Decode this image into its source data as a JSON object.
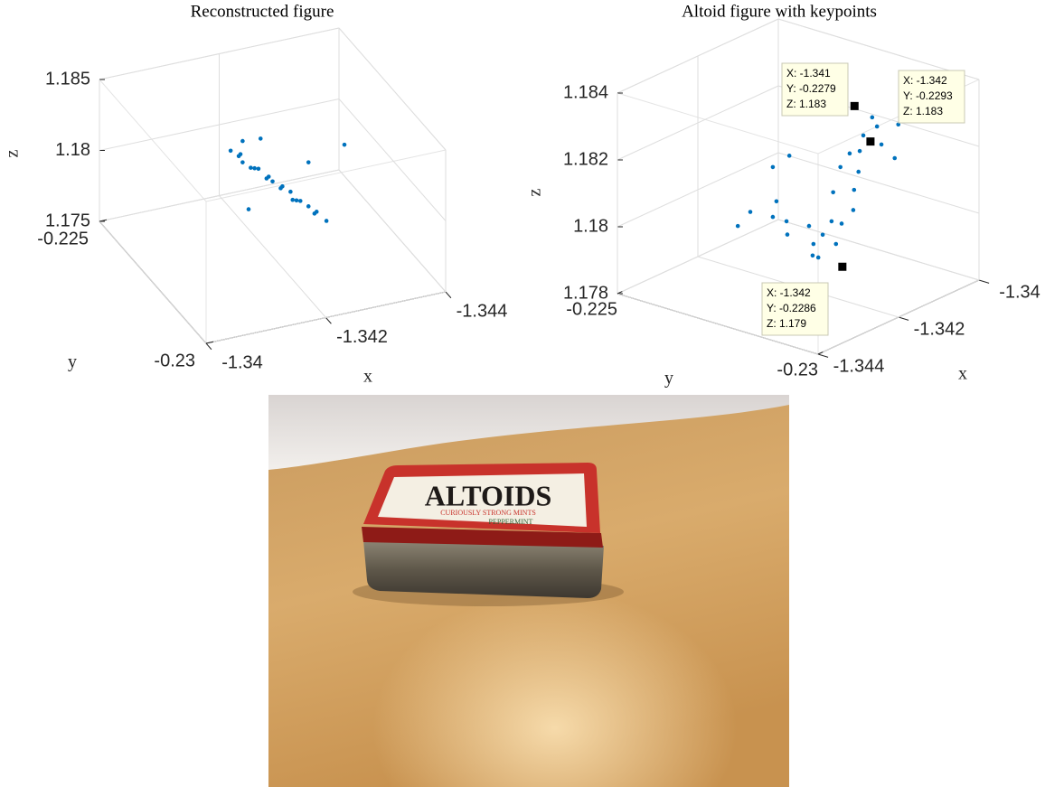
{
  "chart_data": [
    {
      "type": "scatter3d",
      "title": "Reconstructed figure",
      "xlabel": "x",
      "ylabel": "y",
      "zlabel": "z",
      "color": "#0072bd",
      "grid": true,
      "xlim": [
        -1.344,
        -1.34
      ],
      "ylim": [
        -0.23,
        -0.225
      ],
      "zlim": [
        1.175,
        1.185
      ],
      "xticks": [
        -1.344,
        -1.342,
        -1.34
      ],
      "yticks": [
        -0.23,
        -0.225
      ],
      "zticks": [
        1.175,
        1.18,
        1.185
      ],
      "x": [
        -1.3413,
        -1.3414,
        -1.3415,
        -1.3415,
        -1.3416,
        -1.3417,
        -1.3418,
        -1.3419,
        -1.3419,
        -1.342,
        -1.3421,
        -1.3422,
        -1.3423,
        -1.3423,
        -1.3424,
        -1.3425,
        -1.3426,
        -1.3427,
        -1.3427,
        -1.3429,
        -1.3415,
        -1.3418,
        -1.3432,
        -1.3416,
        -1.3426
      ],
      "y": [
        -0.2275,
        -0.2276,
        -0.2274,
        -0.2275,
        -0.2276,
        -0.2275,
        -0.2274,
        -0.2276,
        -0.2275,
        -0.2275,
        -0.2276,
        -0.2274,
        -0.2275,
        -0.2276,
        -0.2275,
        -0.2274,
        -0.2275,
        -0.2276,
        -0.2275,
        -0.2275,
        -0.2275,
        -0.2275,
        -0.2275,
        -0.2275,
        -0.2275
      ],
      "z": [
        1.1831,
        1.1828,
        1.1825,
        1.1821,
        1.1818,
        1.1815,
        1.1812,
        1.1809,
        1.1806,
        1.1803,
        1.1799,
        1.1796,
        1.1793,
        1.1789,
        1.1786,
        1.1783,
        1.178,
        1.1777,
        1.1774,
        1.1767,
        1.1836,
        1.1835,
        1.1818,
        1.1787,
        1.1811
      ]
    },
    {
      "type": "scatter3d",
      "title": "Altoid figure with keypoints",
      "xlabel": "x",
      "ylabel": "y",
      "zlabel": "z",
      "color": "#0072bd",
      "grid": true,
      "xlim": [
        -1.344,
        -1.34
      ],
      "ylim": [
        -0.23,
        -0.225
      ],
      "zlim": [
        1.178,
        1.184
      ],
      "xticks": [
        -1.344,
        -1.342,
        -1.34
      ],
      "yticks": [
        -0.23,
        -0.225
      ],
      "zticks": [
        1.178,
        1.18,
        1.182,
        1.184
      ],
      "x": [
        -1.34212,
        -1.34234,
        -1.34189,
        -1.34257,
        -1.342,
        -1.34167,
        -1.34133,
        -1.34111,
        -1.341,
        -1.34077,
        -1.34088,
        -1.34054,
        -1.34021,
        -1.34043,
        -1.34066,
        -1.3401,
        -1.34122,
        -1.34156,
        -1.34313,
        -1.34324,
        -1.34369,
        -1.344,
        -1.34279,
        -1.34252,
        -1.34313,
        -1.34223,
        -1.34183,
        -1.34145,
        -1.34122
      ],
      "y": [
        -0.228,
        -0.2282,
        -0.228,
        -0.2278,
        -0.228,
        -0.228,
        -0.2282,
        -0.228,
        -0.228,
        -0.2278,
        -0.228,
        -0.228,
        -0.2282,
        -0.228,
        -0.228,
        -0.228,
        -0.2278,
        -0.228,
        -0.228,
        -0.2282,
        -0.228,
        -0.228,
        -0.228,
        -0.2278,
        -0.228,
        -0.228,
        -0.2282,
        -0.228,
        -0.228
      ],
      "z": [
        1.17953,
        1.17938,
        1.17968,
        1.17999,
        1.17906,
        1.17996,
        1.18018,
        1.18059,
        1.18107,
        1.18149,
        1.18209,
        1.18217,
        1.18212,
        1.18157,
        1.18251,
        1.18098,
        1.17957,
        1.17922,
        1.1809,
        1.1815,
        1.18136,
        1.18111,
        1.18058,
        1.18232,
        1.18239,
        1.18013,
        1.18099,
        1.18146,
        1.18174
      ],
      "datatips": [
        {
          "x": -1.341,
          "y": -0.2279,
          "z": 1.183,
          "labels": [
            "X: -1.341",
            "Y: -0.2279",
            "Z: 1.183"
          ]
        },
        {
          "x": -1.342,
          "y": -0.2293,
          "z": 1.183,
          "labels": [
            "X: -1.342",
            "Y: -0.2293",
            "Z: 1.183"
          ]
        },
        {
          "x": -1.342,
          "y": -0.2286,
          "z": 1.179,
          "labels": [
            "X: -1.342",
            "Y: -0.2286",
            "Z: 1.179"
          ]
        }
      ]
    }
  ],
  "photo": {
    "brand": "ALTOIDS",
    "tagline": "CURIOUSLY STRONG MINTS",
    "flavor": "PEPPERMINT"
  }
}
